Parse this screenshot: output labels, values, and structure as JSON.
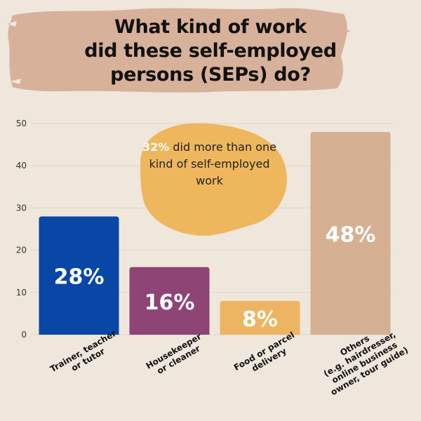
{
  "title_lines": [
    "What kind of work",
    "did these self-employed",
    "persons (SEPs) do?"
  ],
  "callout": {
    "highlight": "32%",
    "text": "did more than one kind of self-employed work"
  },
  "colors": {
    "background": "#efe6dc",
    "title_brush": "#d8b19a",
    "callout_blob": "#eeb75e",
    "gridline": "#e0d6cc"
  },
  "chart_data": {
    "type": "bar",
    "title": "What kind of work did these self-employed persons (SEPs) do?",
    "xlabel": "",
    "ylabel": "",
    "ylim": [
      0,
      50
    ],
    "yticks": [
      0,
      10,
      20,
      30,
      40,
      50
    ],
    "grid": true,
    "categories": [
      [
        "Trainer, teacher",
        "or tutor"
      ],
      [
        "Housekeeper",
        "or cleaner"
      ],
      [
        "Food or parcel",
        "delivery"
      ],
      [
        "Others",
        "(e.g. hairdresser,",
        "online business",
        "owner, tour guide)"
      ]
    ],
    "values": [
      28,
      16,
      8,
      48
    ],
    "data_labels": [
      "28%",
      "16%",
      "8%",
      "48%"
    ],
    "bar_colors": [
      "#0847a6",
      "#8e4475",
      "#edb561",
      "#d6b092"
    ]
  }
}
